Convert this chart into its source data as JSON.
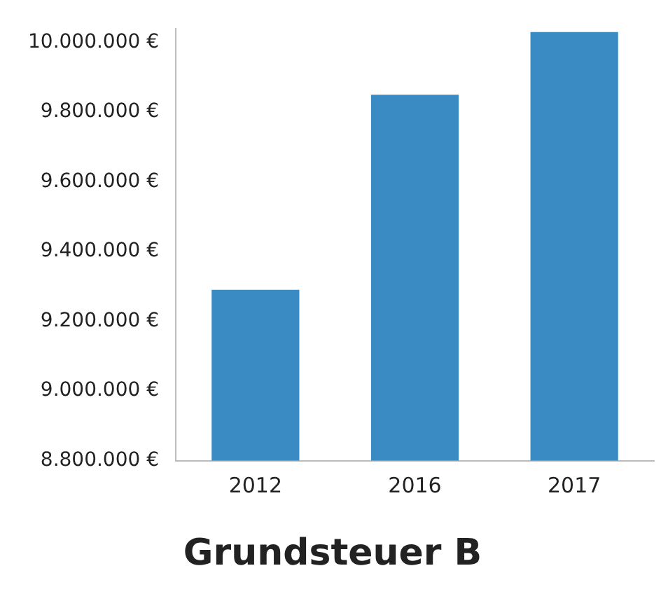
{
  "chart_data": {
    "type": "bar",
    "title": "Grundsteuer B",
    "categories": [
      "2012",
      "2016",
      "2017"
    ],
    "values": [
      9290000,
      9850000,
      10030000
    ],
    "color": "#3a8ac4",
    "ylim": [
      8800000,
      10040000
    ],
    "yticks": [
      {
        "value": 8800000,
        "label": "8.800.000 €"
      },
      {
        "value": 9000000,
        "label": "9.000.000 €"
      },
      {
        "value": 9200000,
        "label": "9.200.000 €"
      },
      {
        "value": 9400000,
        "label": "9.400.000 €"
      },
      {
        "value": 9600000,
        "label": "9.600.000 €"
      },
      {
        "value": 9800000,
        "label": "9.800.000 €"
      },
      {
        "value": 10000000,
        "label": "10.000.000 €"
      }
    ],
    "grid": false,
    "legend": false
  }
}
